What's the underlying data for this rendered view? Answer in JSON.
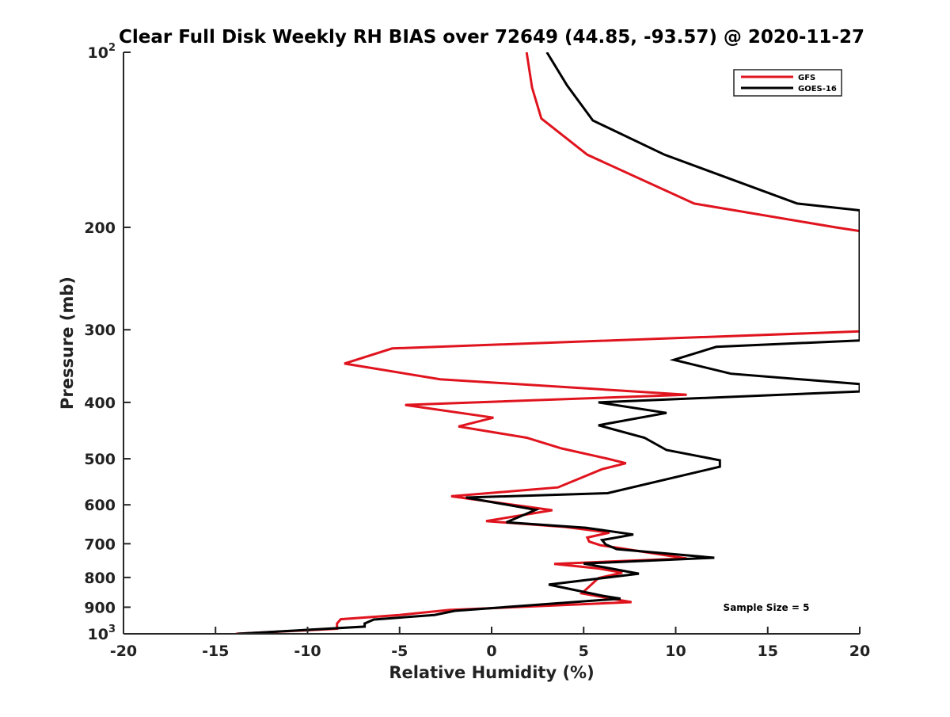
{
  "chart_data": {
    "type": "line",
    "title": "Clear Full Disk Weekly RH BIAS over 72649 (44.85, -93.57) @ 2020-11-27",
    "xlabel": "Relative Humidity (%)",
    "ylabel": "Pressure (mb)",
    "xlim": [
      -20,
      20
    ],
    "ylim": [
      100,
      1000
    ],
    "y_scale": "log",
    "y_reversed": true,
    "grid": false,
    "legend_position": "top-right",
    "x_ticks": [
      "-20",
      "-15",
      "-10",
      "-5",
      "0",
      "5",
      "10",
      "15",
      "20"
    ],
    "y_ticks": [
      {
        "value": 100,
        "base": "10",
        "exp": "2"
      },
      {
        "value": 200,
        "label": "200"
      },
      {
        "value": 300,
        "label": "300"
      },
      {
        "value": 400,
        "label": "400"
      },
      {
        "value": 500,
        "label": "500"
      },
      {
        "value": 600,
        "label": "600"
      },
      {
        "value": 700,
        "label": "700"
      },
      {
        "value": 800,
        "label": "800"
      },
      {
        "value": 900,
        "label": "900"
      },
      {
        "value": 1000,
        "base": "10",
        "exp": "3"
      }
    ],
    "annotation": "Sample Size = 5",
    "series": [
      {
        "name": "GFS",
        "color": "#e0141e",
        "points": [
          [
            1.9,
            100
          ],
          [
            2.2,
            115
          ],
          [
            2.7,
            130
          ],
          [
            5.2,
            150
          ],
          [
            11.0,
            182
          ],
          [
            18.7,
            200
          ],
          [
            20.0,
            203
          ],
          [
            20.0,
            302
          ],
          [
            -5.4,
            323
          ],
          [
            -8.0,
            343
          ],
          [
            -2.8,
            365
          ],
          [
            10.6,
            388
          ],
          [
            -4.7,
            404
          ],
          [
            0.1,
            425
          ],
          [
            -1.8,
            440
          ],
          [
            1.9,
            460
          ],
          [
            3.8,
            480
          ],
          [
            6.3,
            500
          ],
          [
            7.3,
            509
          ],
          [
            6.0,
            521
          ],
          [
            3.6,
            560
          ],
          [
            -2.2,
            580
          ],
          [
            3.3,
            613
          ],
          [
            -0.3,
            640
          ],
          [
            4.0,
            655
          ],
          [
            6.4,
            670
          ],
          [
            5.2,
            683
          ],
          [
            5.3,
            694
          ],
          [
            5.9,
            704
          ],
          [
            10.6,
            742
          ],
          [
            3.4,
            758
          ],
          [
            5.8,
            772
          ],
          [
            7.1,
            785
          ],
          [
            5.8,
            802
          ],
          [
            4.9,
            852
          ],
          [
            6.5,
            870
          ],
          [
            7.6,
            882
          ],
          [
            -2.3,
            910
          ],
          [
            -5.0,
            928
          ],
          [
            -8.2,
            944
          ],
          [
            -8.4,
            960
          ],
          [
            -8.4,
            980
          ],
          [
            -13.9,
            1000
          ]
        ]
      },
      {
        "name": "GOES-16",
        "color": "#000000",
        "points": [
          [
            3.0,
            100
          ],
          [
            4.1,
            114
          ],
          [
            5.5,
            131
          ],
          [
            9.4,
            150
          ],
          [
            16.6,
            182
          ],
          [
            20.0,
            187
          ],
          [
            20.0,
            313
          ],
          [
            12.2,
            321
          ],
          [
            9.9,
            338
          ],
          [
            13.0,
            357
          ],
          [
            20.0,
            372
          ],
          [
            20.0,
            383
          ],
          [
            5.8,
            400
          ],
          [
            9.5,
            417
          ],
          [
            5.8,
            438
          ],
          [
            8.3,
            460
          ],
          [
            9.5,
            483
          ],
          [
            12.4,
            503
          ],
          [
            12.4,
            516
          ],
          [
            6.3,
            573
          ],
          [
            -1.4,
            583
          ],
          [
            2.4,
            612
          ],
          [
            0.8,
            643
          ],
          [
            5.1,
            657
          ],
          [
            7.7,
            675
          ],
          [
            6.0,
            690
          ],
          [
            6.2,
            702
          ],
          [
            6.8,
            715
          ],
          [
            12.1,
            740
          ],
          [
            5.0,
            757
          ],
          [
            8.0,
            788
          ],
          [
            3.1,
            823
          ],
          [
            6.0,
            860
          ],
          [
            7.0,
            870
          ],
          [
            -2.0,
            913
          ],
          [
            -3.1,
            928
          ],
          [
            -6.4,
            945
          ],
          [
            -6.9,
            960
          ],
          [
            -6.9,
            972
          ],
          [
            -13.8,
            1000
          ]
        ]
      }
    ]
  }
}
